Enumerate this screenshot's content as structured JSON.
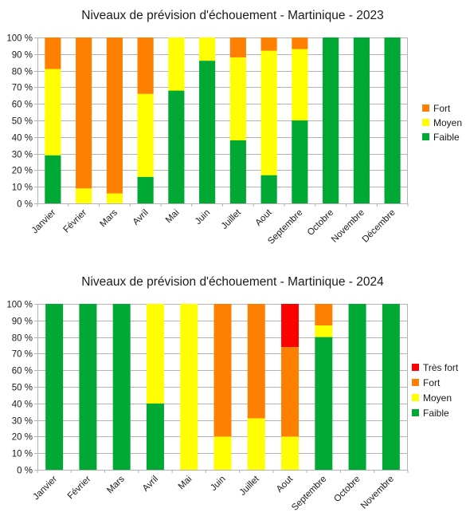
{
  "colors": {
    "tres_fort": "#ff0000",
    "fort": "#ff8000",
    "moyen": "#ffff00",
    "faible": "#00a933"
  },
  "chart_data": [
    {
      "type": "bar",
      "stacked": true,
      "title": "Niveaux de prévision d'échouement - Martinique - 2023",
      "categories": [
        "Janvier",
        "Février",
        "Mars",
        "Avril",
        "Mai",
        "Juin",
        "Juillet",
        "Aout",
        "Septembre",
        "Octobre",
        "Novembre",
        "Décembre"
      ],
      "series": [
        {
          "name": "Faible",
          "color": "#00a933",
          "values": [
            29,
            0,
            0,
            16,
            68,
            86,
            38,
            17,
            50,
            100,
            100,
            100
          ]
        },
        {
          "name": "Moyen",
          "color": "#ffff00",
          "values": [
            52,
            9,
            6,
            50,
            32,
            14,
            50,
            75,
            43,
            0,
            0,
            0
          ]
        },
        {
          "name": "Fort",
          "color": "#ff8000",
          "values": [
            19,
            91,
            94,
            34,
            0,
            0,
            12,
            8,
            7,
            0,
            0,
            0
          ]
        }
      ],
      "legend_order": [
        "Fort",
        "Moyen",
        "Faible"
      ],
      "yticks": [
        "0 %",
        "10 %",
        "20 %",
        "30 %",
        "40 %",
        "50 %",
        "60 %",
        "70 %",
        "80 %",
        "90 %",
        "100 %"
      ],
      "ylim": [
        0,
        100
      ],
      "grid": true,
      "legend": "right"
    },
    {
      "type": "bar",
      "stacked": true,
      "title": "Niveaux de prévision d'échouement - Martinique - 2024",
      "categories": [
        "Janvier",
        "Février",
        "Mars",
        "Avril",
        "Mai",
        "Juin",
        "Juillet",
        "Aout",
        "Septembre",
        "Octobre",
        "Novembre"
      ],
      "series": [
        {
          "name": "Faible",
          "color": "#00a933",
          "values": [
            100,
            100,
            100,
            40,
            0,
            0,
            0,
            0,
            80,
            100,
            100
          ]
        },
        {
          "name": "Moyen",
          "color": "#ffff00",
          "values": [
            0,
            0,
            0,
            60,
            100,
            20,
            31,
            20,
            7,
            0,
            0
          ]
        },
        {
          "name": "Fort",
          "color": "#ff8000",
          "values": [
            0,
            0,
            0,
            0,
            0,
            80,
            69,
            54,
            13,
            0,
            0
          ]
        },
        {
          "name": "Très fort",
          "color": "#ff0000",
          "values": [
            0,
            0,
            0,
            0,
            0,
            0,
            0,
            26,
            0,
            0,
            0
          ]
        }
      ],
      "legend_order": [
        "Très fort",
        "Fort",
        "Moyen",
        "Faible"
      ],
      "yticks": [
        "0 %",
        "10 %",
        "20 %",
        "30 %",
        "40 %",
        "50 %",
        "60 %",
        "70 %",
        "80 %",
        "90 %",
        "100 %"
      ],
      "ylim": [
        0,
        100
      ],
      "grid": true,
      "legend": "right"
    }
  ]
}
